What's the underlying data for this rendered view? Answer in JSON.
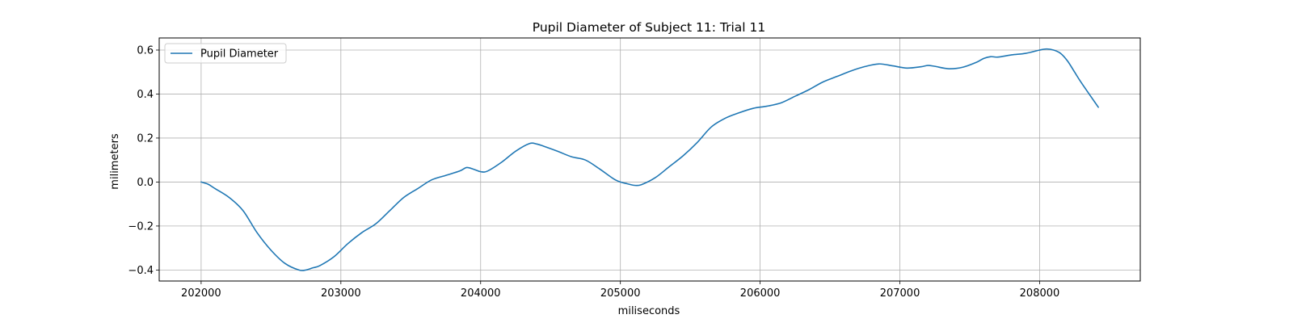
{
  "chart_data": {
    "type": "line",
    "title": "Pupil Diameter of Subject 11: Trial 11",
    "xlabel": "miliseconds",
    "ylabel": "milimeters",
    "xlim": [
      201700,
      208720
    ],
    "ylim": [
      -0.45,
      0.655
    ],
    "xticks": [
      202000,
      203000,
      204000,
      205000,
      206000,
      207000,
      208000
    ],
    "xtick_labels": [
      "202000",
      "203000",
      "204000",
      "205000",
      "206000",
      "207000",
      "208000"
    ],
    "yticks": [
      -0.4,
      -0.2,
      0.0,
      0.2,
      0.4,
      0.6
    ],
    "ytick_labels": [
      "−0.4",
      "−0.2",
      "0.0",
      "0.2",
      "0.4",
      "0.6"
    ],
    "grid": true,
    "legend_position": "upper-left",
    "series": [
      {
        "name": "Pupil Diameter",
        "color": "#1f77b4",
        "x": [
          202000,
          202050,
          202100,
          202200,
          202300,
          202400,
          202500,
          202600,
          202700,
          202750,
          202800,
          202850,
          202950,
          203050,
          203150,
          203250,
          203350,
          203450,
          203550,
          203650,
          203750,
          203850,
          203900,
          203950,
          204000,
          204050,
          204150,
          204250,
          204350,
          204400,
          204450,
          204550,
          204650,
          204750,
          204850,
          204950,
          205000,
          205050,
          205100,
          205150,
          205250,
          205350,
          205450,
          205550,
          205650,
          205750,
          205850,
          205950,
          206050,
          206150,
          206250,
          206350,
          206450,
          206550,
          206650,
          206750,
          206850,
          206950,
          207050,
          207150,
          207200,
          207250,
          207350,
          207450,
          207550,
          207600,
          207650,
          207700,
          207800,
          207900,
          208000,
          208050,
          208100,
          208150,
          208200,
          208250,
          208300,
          208420
        ],
        "y": [
          0.0,
          -0.01,
          -0.03,
          -0.07,
          -0.13,
          -0.23,
          -0.31,
          -0.37,
          -0.4,
          -0.4,
          -0.39,
          -0.38,
          -0.34,
          -0.28,
          -0.23,
          -0.19,
          -0.13,
          -0.07,
          -0.03,
          0.01,
          0.03,
          0.05,
          0.066,
          0.058,
          0.047,
          0.05,
          0.09,
          0.14,
          0.175,
          0.173,
          0.163,
          0.14,
          0.115,
          0.1,
          0.06,
          0.015,
          0.0,
          -0.008,
          -0.015,
          -0.012,
          0.02,
          0.07,
          0.12,
          0.18,
          0.25,
          0.29,
          0.315,
          0.335,
          0.345,
          0.36,
          0.39,
          0.42,
          0.455,
          0.48,
          0.505,
          0.525,
          0.537,
          0.528,
          0.518,
          0.524,
          0.53,
          0.526,
          0.515,
          0.522,
          0.545,
          0.562,
          0.57,
          0.568,
          0.578,
          0.585,
          0.6,
          0.605,
          0.6,
          0.585,
          0.55,
          0.5,
          0.45,
          0.34
        ]
      }
    ]
  }
}
